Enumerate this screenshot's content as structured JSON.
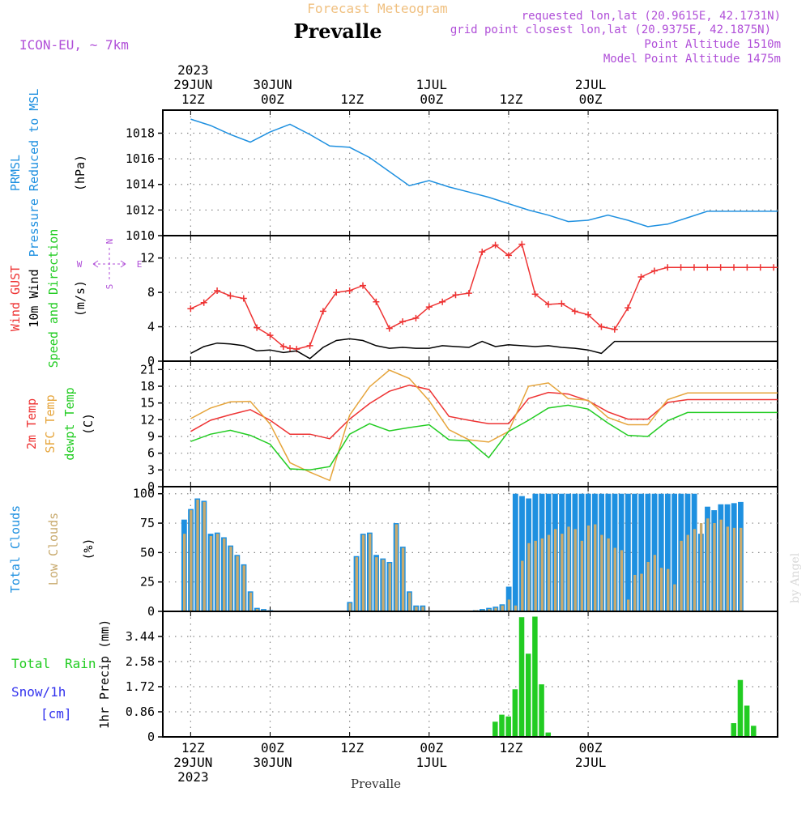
{
  "colors": {
    "pressure": "#1e90e0",
    "gust": "#ee3333",
    "wind": "#000000",
    "temp2m": "#ee3333",
    "sfctemp": "#e6a53c",
    "dewpt": "#22cc22",
    "totalclouds": "#1e90e0",
    "lowclouds": "#c8aa6e",
    "rain": "#22cc22",
    "snow": "#3333ee",
    "header_purple": "#b04fd8",
    "model_purple": "#b04fd8",
    "title_orange": "#f0c080",
    "grid": "#888888",
    "watermark": "#d8d8d8"
  },
  "header": {
    "model": "ICON-EU, ~ 7km",
    "supertitle": "Forecast Meteogram",
    "title": "Prevalle",
    "requested": "requested lon,lat (20.9615E, 42.1731N)",
    "gridpoint": "grid point closest lon,lat (20.9375E, 42.1875N)",
    "altitude": "Point Altitude 1510m",
    "model_altitude": "Model Point Altitude 1475m",
    "bottom_label": "Prevalle",
    "watermark": "by Angel"
  },
  "time_axis": {
    "top": [
      {
        "lines": [
          "2023",
          "29JUN",
          "12Z"
        ]
      },
      {
        "lines": [
          "30JUN",
          "00Z"
        ]
      },
      {
        "lines": [
          "12Z"
        ]
      },
      {
        "lines": [
          "1JUL",
          "00Z"
        ]
      },
      {
        "lines": [
          "12Z"
        ]
      },
      {
        "lines": [
          "2JUL",
          "00Z"
        ]
      }
    ],
    "bottom": [
      {
        "lines": [
          "12Z",
          "29JUN",
          "2023"
        ]
      },
      {
        "lines": [
          "00Z",
          "30JUN"
        ]
      },
      {
        "lines": [
          "12Z"
        ]
      },
      {
        "lines": [
          "00Z",
          "1JUL"
        ]
      },
      {
        "lines": [
          "12Z"
        ]
      },
      {
        "lines": [
          "00Z",
          "2JUL"
        ]
      }
    ]
  },
  "chart_data": [
    {
      "type": "line",
      "panel": "pressure",
      "left_labels": [
        "PRMSL",
        "Pressure Reduced to MSL",
        "(hPa)"
      ],
      "yticks": [
        1010,
        1012,
        1014,
        1016,
        1018
      ],
      "ylim": [
        1010,
        1019.8
      ],
      "series": [
        {
          "name": "PRMSL",
          "x": [
            0,
            3,
            6,
            9,
            12,
            15,
            18,
            21,
            24,
            27,
            30,
            33,
            36,
            39,
            42,
            45,
            48,
            51,
            54,
            57,
            60,
            63,
            66,
            69,
            72,
            75,
            78,
            81,
            84,
            87,
            90
          ],
          "values": [
            1019.1,
            1018.6,
            1017.9,
            1017.3,
            1018.1,
            1018.7,
            1017.9,
            1017.0,
            1016.9,
            1016.1,
            1015.0,
            1013.9,
            1014.3,
            1013.8,
            1013.4,
            1013.0,
            1012.5,
            1012.0,
            1011.6,
            1011.1,
            1011.2,
            1011.6,
            1011.2,
            1010.7,
            1010.9,
            1011.4,
            1011.9,
            1011.9,
            1011.9,
            1011.9,
            1011.9
          ]
        }
      ]
    },
    {
      "type": "line",
      "panel": "wind",
      "left_labels": [
        "Wind GUST",
        "10m Wind",
        "Speed and Direction",
        "(m/s)"
      ],
      "compass": {
        "n": "N",
        "s": "S",
        "e": "E",
        "w": "W"
      },
      "yticks": [
        0,
        4,
        8,
        12
      ],
      "ylim": [
        0,
        14.6
      ],
      "series": [
        {
          "name": "Wind GUST",
          "x": [
            0,
            2,
            4,
            6,
            8,
            10,
            12,
            14,
            15,
            16,
            18,
            20,
            22,
            24,
            26,
            28,
            30,
            32,
            34,
            36,
            38,
            40,
            42,
            44,
            46,
            48,
            50,
            52,
            54,
            56,
            58,
            60,
            62,
            64,
            66,
            68,
            70,
            72,
            74,
            76,
            78,
            80,
            82,
            84,
            86,
            88,
            90
          ],
          "values": [
            6.1,
            6.8,
            8.2,
            7.6,
            7.3,
            3.9,
            3.0,
            1.7,
            1.5,
            1.4,
            1.8,
            5.8,
            8.0,
            8.2,
            8.8,
            6.9,
            3.8,
            4.6,
            5.0,
            6.3,
            6.9,
            7.7,
            7.9,
            12.7,
            13.5,
            12.3,
            13.6,
            7.8,
            6.6,
            6.7,
            5.8,
            5.4,
            4.0,
            3.7,
            6.2,
            9.8,
            10.5,
            10.9,
            10.9,
            10.9,
            10.9,
            10.9,
            10.9,
            10.9,
            10.9,
            10.9,
            10.9
          ]
        },
        {
          "name": "10m Wind",
          "x": [
            0,
            2,
            4,
            6,
            8,
            10,
            12,
            14,
            16,
            18,
            20,
            22,
            24,
            26,
            28,
            30,
            32,
            34,
            36,
            38,
            40,
            42,
            44,
            46,
            48,
            50,
            52,
            54,
            56,
            58,
            60,
            62,
            64,
            66,
            68,
            70,
            72,
            74,
            76,
            78,
            80,
            82,
            84,
            86,
            88,
            90
          ],
          "values": [
            0.9,
            1.7,
            2.1,
            2.0,
            1.8,
            1.2,
            1.3,
            1.0,
            1.2,
            0.3,
            1.6,
            2.4,
            2.6,
            2.4,
            1.8,
            1.5,
            1.6,
            1.5,
            1.5,
            1.8,
            1.7,
            1.6,
            2.3,
            1.7,
            1.9,
            1.8,
            1.7,
            1.8,
            1.6,
            1.5,
            1.3,
            0.9,
            2.3,
            2.3,
            2.3,
            2.3,
            2.3,
            2.3,
            2.3,
            2.3,
            2.3,
            2.3,
            2.3,
            2.3,
            2.3,
            2.3
          ]
        }
      ]
    },
    {
      "type": "line",
      "panel": "temperature",
      "left_labels": [
        "2m Temp",
        "SFC Temp",
        "dewpt Temp",
        "(C)"
      ],
      "yticks": [
        0,
        3,
        6,
        9,
        12,
        15,
        18,
        21
      ],
      "ylim": [
        0,
        22.5
      ],
      "series": [
        {
          "name": "2m Temp",
          "x": [
            0,
            3,
            6,
            9,
            12,
            15,
            18,
            21,
            24,
            27,
            30,
            33,
            36,
            39,
            42,
            45,
            48,
            51,
            54,
            57,
            60,
            63,
            66,
            69,
            72,
            75,
            78,
            81,
            84,
            87,
            90
          ],
          "values": [
            9.9,
            11.9,
            12.9,
            13.8,
            11.9,
            9.4,
            9.4,
            8.6,
            12.1,
            14.9,
            17.1,
            18.2,
            17.4,
            12.6,
            11.9,
            11.3,
            11.3,
            15.8,
            16.9,
            16.6,
            15.4,
            13.4,
            12.1,
            12.1,
            15.1,
            15.6,
            15.6,
            15.6,
            15.6,
            15.6,
            15.6
          ]
        },
        {
          "name": "SFC Temp",
          "x": [
            0,
            3,
            6,
            9,
            12,
            15,
            18,
            21,
            24,
            27,
            30,
            33,
            36,
            39,
            42,
            45,
            48,
            51,
            54,
            57,
            60,
            63,
            66,
            69,
            72,
            75,
            78,
            81,
            84,
            87,
            90
          ],
          "values": [
            12.2,
            14.1,
            15.2,
            15.3,
            11.2,
            4.3,
            2.6,
            1.1,
            12.8,
            17.9,
            20.9,
            19.4,
            15.4,
            10.2,
            8.4,
            8.0,
            9.9,
            18.0,
            18.6,
            15.8,
            15.5,
            12.4,
            11.1,
            11.1,
            15.6,
            16.8,
            16.8,
            16.8,
            16.8,
            16.8,
            16.8
          ]
        },
        {
          "name": "dewpt Temp",
          "x": [
            0,
            3,
            6,
            9,
            12,
            15,
            18,
            21,
            24,
            27,
            30,
            33,
            36,
            39,
            42,
            45,
            48,
            51,
            54,
            57,
            60,
            63,
            66,
            69,
            72,
            75,
            78,
            81,
            84,
            87,
            90
          ],
          "values": [
            8.1,
            9.4,
            10.1,
            9.2,
            7.6,
            3.2,
            3.0,
            3.6,
            9.4,
            11.3,
            10.0,
            10.6,
            11.1,
            8.4,
            8.2,
            5.2,
            9.9,
            11.9,
            14.1,
            14.6,
            13.9,
            11.4,
            9.2,
            9.0,
            11.8,
            13.3,
            13.3,
            13.3,
            13.3,
            13.3,
            13.3
          ]
        }
      ]
    },
    {
      "type": "bar",
      "panel": "clouds",
      "left_labels": [
        "Total Clouds",
        "Low Clouds",
        "(%)"
      ],
      "yticks": [
        0,
        25,
        50,
        75,
        100
      ],
      "ylim": [
        0,
        106
      ],
      "x_start": -1,
      "x_step": 1,
      "series": [
        {
          "name": "Total Clouds",
          "values": [
            78,
            87,
            96,
            94,
            66,
            67,
            63,
            56,
            48,
            40,
            17,
            3,
            2,
            1,
            0,
            0,
            0,
            0,
            0,
            0,
            0,
            0,
            0,
            0,
            0,
            8,
            47,
            66,
            67,
            48,
            45,
            42,
            75,
            55,
            17,
            5,
            5,
            0,
            0,
            0,
            0,
            0,
            0,
            0,
            1,
            2,
            3,
            4,
            6,
            21,
            100,
            98,
            96,
            100,
            100,
            100,
            100,
            100,
            100,
            100,
            100,
            100,
            100,
            100,
            100,
            100,
            100,
            100,
            100,
            100,
            100,
            100,
            100,
            100,
            100,
            100,
            100,
            100,
            66,
            89,
            86,
            91,
            91,
            92,
            93
          ]
        },
        {
          "name": "Low Clouds",
          "values": [
            66,
            86,
            95,
            93,
            64,
            66,
            62,
            55,
            47,
            39,
            16,
            2,
            1,
            0,
            0,
            0,
            0,
            0,
            0,
            0,
            0,
            0,
            0,
            0,
            0,
            7,
            46,
            65,
            66,
            46,
            44,
            41,
            74,
            54,
            16,
            4,
            4,
            0,
            0,
            0,
            0,
            0,
            0,
            0,
            1,
            1,
            2,
            3,
            5,
            10,
            5,
            43,
            58,
            60,
            62,
            65,
            70,
            66,
            72,
            70,
            60,
            73,
            74,
            65,
            62,
            54,
            52,
            10,
            31,
            32,
            42,
            48,
            37,
            36,
            23,
            60,
            65,
            70,
            75,
            79,
            75,
            78,
            72,
            71,
            71
          ]
        }
      ]
    },
    {
      "type": "bar",
      "panel": "precip",
      "left_labels": [
        "Total",
        "Rain",
        "Snow/1h",
        "[cm]",
        "1hr Precip (mm)"
      ],
      "yticks": [
        "0",
        "0.86",
        "1.72",
        "2.58",
        "3.44"
      ],
      "ylim": [
        0,
        4.3
      ],
      "series": [
        {
          "name": "Rain",
          "x": [
            46,
            47,
            48,
            49,
            50,
            51,
            52,
            53,
            54,
            55,
            82,
            83,
            84,
            85
          ],
          "values": [
            0.52,
            0.76,
            0.7,
            1.63,
            4.1,
            2.85,
            4.12,
            1.8,
            0.15,
            0,
            0.47,
            1.95,
            1.07,
            0.38
          ]
        }
      ]
    }
  ]
}
